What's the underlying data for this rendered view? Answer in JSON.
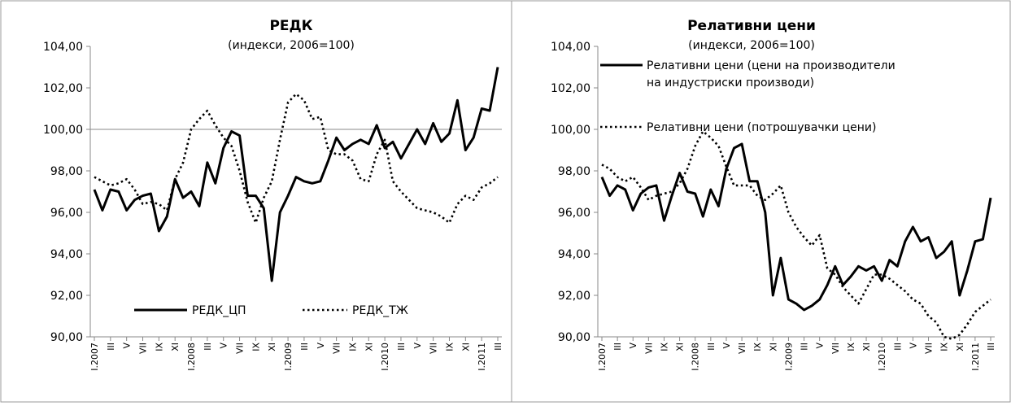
{
  "chart_data": [
    {
      "type": "line",
      "title": "РЕДК",
      "subtitle": "(индекси, 2006=100)",
      "ylim": [
        90,
        104
      ],
      "yticks": [
        "90,00",
        "92,00",
        "94,00",
        "96,00",
        "98,00",
        "100,00",
        "102,00",
        "104,00"
      ],
      "xtick_labels": [
        "I.2007",
        "III",
        "V",
        "VII",
        "IX",
        "XI",
        "I.2008",
        "III",
        "V",
        "VII",
        "IX",
        "XI",
        "I.2009",
        "III",
        "V",
        "VII",
        "IX",
        "XI",
        "I.2010",
        "III",
        "V",
        "VII",
        "IX",
        "XI",
        "I.2011",
        "III"
      ],
      "grid": false,
      "reference_line": 100,
      "legend_position": "bottom",
      "series": [
        {
          "name": "РЕДК_ЦП",
          "style": "solid",
          "values": [
            97.1,
            96.1,
            97.1,
            97.0,
            96.1,
            96.6,
            96.8,
            96.9,
            95.1,
            95.8,
            97.6,
            96.7,
            97.0,
            96.3,
            98.4,
            97.4,
            99.1,
            99.9,
            99.7,
            96.8,
            96.8,
            96.2,
            92.7,
            96.0,
            96.8,
            97.7,
            97.5,
            97.4,
            97.5,
            98.5,
            99.6,
            99.0,
            99.3,
            99.5,
            99.3,
            100.2,
            99.1,
            99.4,
            98.6,
            99.3,
            100.0,
            99.3,
            100.3,
            99.4,
            99.8,
            101.4,
            99.0,
            99.6,
            101.0,
            100.9,
            103.0
          ]
        },
        {
          "name": "РЕДК_ТЖ",
          "style": "dotted",
          "values": [
            97.7,
            97.5,
            97.3,
            97.4,
            97.6,
            97.1,
            96.4,
            96.5,
            96.4,
            96.1,
            97.6,
            98.4,
            100.0,
            100.5,
            100.9,
            100.2,
            99.6,
            99.2,
            98.0,
            96.5,
            95.5,
            96.7,
            97.5,
            99.5,
            101.3,
            101.7,
            101.4,
            100.5,
            100.6,
            99.0,
            98.8,
            98.8,
            98.5,
            97.6,
            97.5,
            98.8,
            99.5,
            97.5,
            97.0,
            96.6,
            96.2,
            96.1,
            96.0,
            95.8,
            95.5,
            96.4,
            96.8,
            96.6,
            97.2,
            97.4,
            97.7
          ]
        }
      ]
    },
    {
      "type": "line",
      "title": "Релативни цени",
      "subtitle": "(индекси, 2006=100)",
      "ylim": [
        90,
        104
      ],
      "yticks": [
        "90,00",
        "92,00",
        "94,00",
        "96,00",
        "98,00",
        "100,00",
        "102,00",
        "104,00"
      ],
      "xtick_labels": [
        "I.2007",
        "III",
        "V",
        "VII",
        "IX",
        "XI",
        "I.2008",
        "III",
        "V",
        "VII",
        "IX",
        "XI",
        "I.2009",
        "III",
        "V",
        "VII",
        "IX",
        "XI",
        "I.2010",
        "III",
        "V",
        "VII",
        "IX",
        "XI",
        "I.2011",
        "III"
      ],
      "grid": false,
      "legend_position": "top",
      "series": [
        {
          "name_lines": [
            "Релативни цени (цени на производители",
            "на индустриски производи)"
          ],
          "style": "solid",
          "values": [
            97.7,
            96.8,
            97.3,
            97.1,
            96.1,
            96.9,
            97.2,
            97.3,
            95.6,
            96.8,
            97.9,
            97.0,
            96.9,
            95.8,
            97.1,
            96.3,
            98.1,
            99.1,
            99.3,
            97.5,
            97.5,
            96.0,
            92.0,
            93.8,
            91.8,
            91.6,
            91.3,
            91.5,
            91.8,
            92.5,
            93.4,
            92.5,
            92.9,
            93.4,
            93.2,
            93.4,
            92.7,
            93.7,
            93.4,
            94.6,
            95.3,
            94.6,
            94.8,
            93.8,
            94.1,
            94.6,
            92.0,
            93.2,
            94.6,
            94.7,
            96.7
          ]
        },
        {
          "name_lines": [
            "Релативни цени (потрошувачки цени)"
          ],
          "style": "dotted",
          "values": [
            98.3,
            98.1,
            97.7,
            97.5,
            97.7,
            97.2,
            96.6,
            96.8,
            96.9,
            97.0,
            97.4,
            98.1,
            99.2,
            99.9,
            99.6,
            99.2,
            98.2,
            97.3,
            97.3,
            97.3,
            96.8,
            96.6,
            96.9,
            97.3,
            96.0,
            95.3,
            94.8,
            94.4,
            94.9,
            93.3,
            93.0,
            92.4,
            92.0,
            91.6,
            92.3,
            93.0,
            93.0,
            92.8,
            92.5,
            92.2,
            91.8,
            91.6,
            91.0,
            90.7,
            90.0,
            89.9,
            90.1,
            90.6,
            91.2,
            91.5,
            91.8
          ]
        }
      ]
    }
  ]
}
